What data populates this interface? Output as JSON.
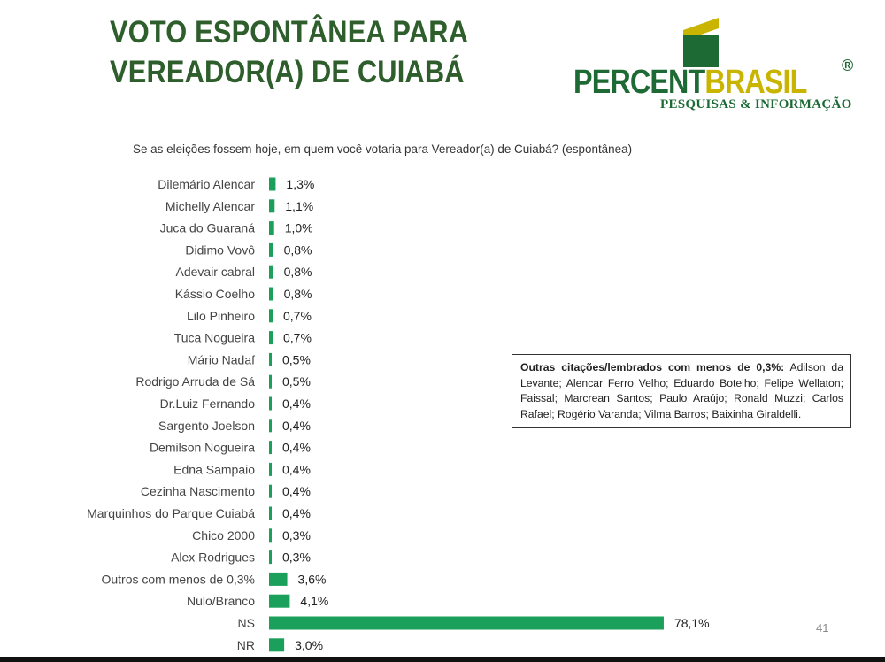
{
  "title": {
    "line1": "VOTO ESPONTÂNEA PARA",
    "line2": "VEREADOR(A) DE CUIABÁ"
  },
  "logo": {
    "word1": "PERCENT",
    "word2": "BRASIL",
    "registered": "®",
    "tagline": "PESQUISAS & INFORMAÇÃO",
    "colors": {
      "green": "#1d6a35",
      "yellow": "#c9b400"
    }
  },
  "question": "Se as eleições fossem hoje, em quem você votaria para Vereador(a) de Cuiabá? (espontânea)",
  "note": {
    "heading": "Outras citações/lembrados com menos de 0,3%:",
    "text": " Adilson da Levante; Alencar Ferro Velho; Eduardo Botelho; Felipe Wellaton; Faissal; Marcrean Santos; Paulo Araújo; Ronald Muzzi; Carlos Rafael; Rogério Varanda; Vilma Barros; Baixinha Giraldelli."
  },
  "page_number": "41",
  "chart_data": {
    "type": "bar",
    "orientation": "horizontal",
    "bar_color": "#1aa05a",
    "categories": [
      "Dilemário Alencar",
      "Michelly Alencar",
      "Juca do Guaraná",
      "Didimo Vovô",
      "Adevair cabral",
      "Kássio Coelho",
      "Lilo Pinheiro",
      "Tuca Nogueira",
      "Mário Nadaf",
      "Rodrigo Arruda de Sá",
      "Dr.Luiz Fernando",
      "Sargento Joelson",
      "Demilson Nogueira",
      "Edna Sampaio",
      "Cezinha Nascimento",
      "Marquinhos do Parque Cuiabá",
      "Chico 2000",
      "Alex Rodrigues",
      "Outros com menos de 0,3%",
      "Nulo/Branco",
      "NS",
      "NR"
    ],
    "values": [
      1.3,
      1.1,
      1.0,
      0.8,
      0.8,
      0.8,
      0.7,
      0.7,
      0.5,
      0.5,
      0.4,
      0.4,
      0.4,
      0.4,
      0.4,
      0.4,
      0.3,
      0.3,
      3.6,
      4.1,
      78.1,
      3.0
    ],
    "labels": [
      "1,3%",
      "1,1%",
      "1,0%",
      "0,8%",
      "0,8%",
      "0,8%",
      "0,7%",
      "0,7%",
      "0,5%",
      "0,5%",
      "0,4%",
      "0,4%",
      "0,4%",
      "0,4%",
      "0,4%",
      "0,4%",
      "0,3%",
      "0,3%",
      "3,6%",
      "4,1%",
      "78,1%",
      "3,0%"
    ],
    "xlim": [
      0,
      100
    ],
    "grid": false,
    "legend": "none"
  }
}
